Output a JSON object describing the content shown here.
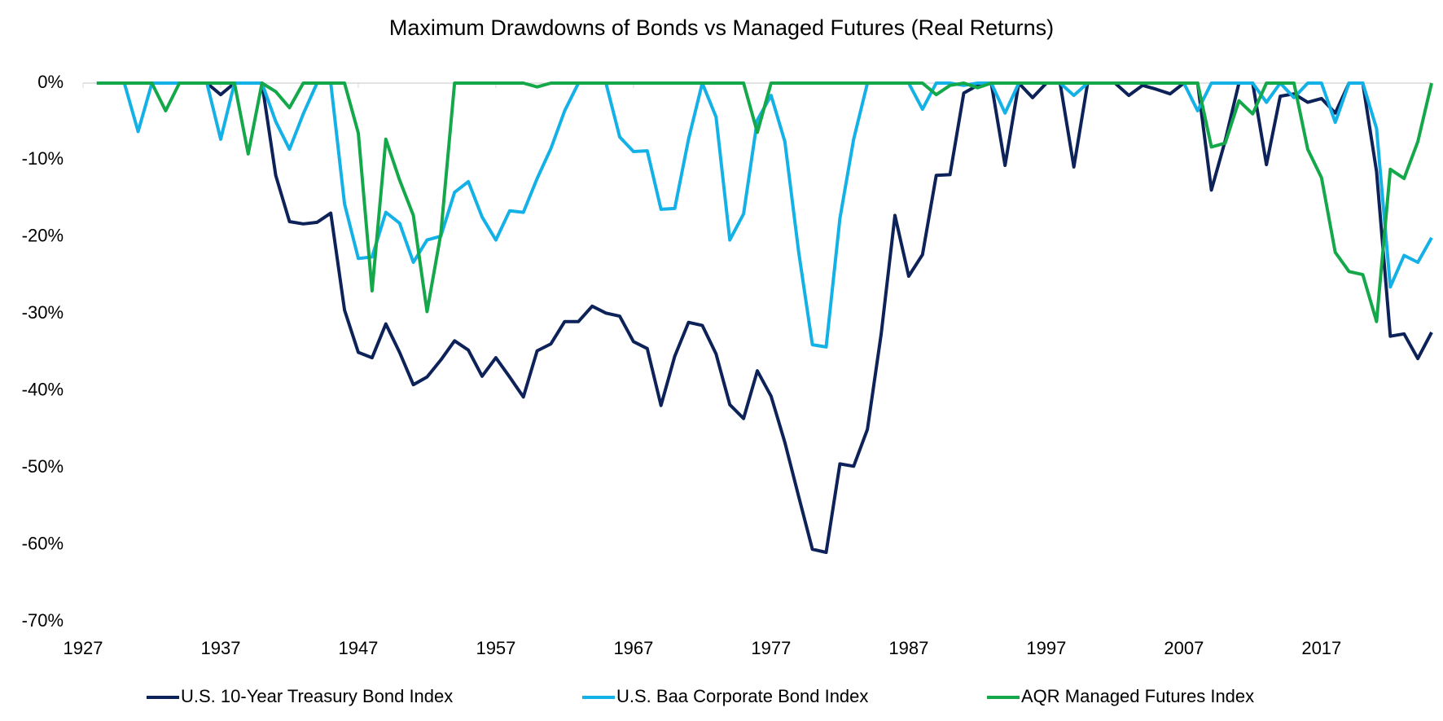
{
  "chart_data": {
    "type": "line",
    "title": "Maximum Drawdowns of Bonds vs Managed Futures (Real Returns)",
    "x": [
      1928,
      1929,
      1930,
      1931,
      1932,
      1933,
      1934,
      1935,
      1936,
      1937,
      1938,
      1939,
      1940,
      1941,
      1942,
      1943,
      1944,
      1945,
      1946,
      1947,
      1948,
      1949,
      1950,
      1951,
      1952,
      1953,
      1954,
      1955,
      1956,
      1957,
      1958,
      1959,
      1960,
      1961,
      1962,
      1963,
      1964,
      1965,
      1966,
      1967,
      1968,
      1969,
      1970,
      1971,
      1972,
      1973,
      1974,
      1975,
      1976,
      1977,
      1978,
      1979,
      1980,
      1981,
      1982,
      1983,
      1984,
      1985,
      1986,
      1987,
      1988,
      1989,
      1990,
      1991,
      1992,
      1993,
      1994,
      1995,
      1996,
      1997,
      1998,
      1999,
      2000,
      2001,
      2002,
      2003,
      2004,
      2005,
      2006,
      2007,
      2008,
      2009,
      2010,
      2011,
      2012,
      2013,
      2014,
      2015,
      2016,
      2017,
      2018,
      2019,
      2020,
      2021,
      2022,
      2023,
      2024,
      2025
    ],
    "series": [
      {
        "name": "U.S. 10-Year Treasury Bond Index",
        "color": "#0d2258",
        "values": [
          0,
          0,
          0,
          0,
          0,
          0,
          0,
          0,
          0,
          -1.5,
          0,
          0,
          0,
          -12,
          -18,
          -18.3,
          -18.1,
          -16.9,
          -29.5,
          -35,
          -35.7,
          -31.3,
          -35,
          -39.2,
          -38.2,
          -36,
          -33.5,
          -34.7,
          -38.1,
          -35.7,
          -38.2,
          -40.8,
          -34.8,
          -33.9,
          -31,
          -31,
          -29,
          -29.9,
          -30.3,
          -33.6,
          -34.5,
          -41.9,
          -35.5,
          -31.1,
          -31.5,
          -35.2,
          -41.8,
          -43.6,
          -37.4,
          -40.7,
          -46.7,
          -53.7,
          -60.6,
          -61,
          -49.5,
          -49.8,
          -45,
          -32.6,
          -17.2,
          -25.1,
          -22.3,
          -12,
          -11.9,
          -1.3,
          -0.3,
          0,
          -10.7,
          0,
          -1.9,
          0,
          0,
          -10.9,
          0,
          0,
          0,
          -1.6,
          -0.3,
          -0.8,
          -1.4,
          0,
          0,
          -13.9,
          -7.5,
          0,
          0,
          -10.6,
          -1.7,
          -1.4,
          -2.5,
          -2,
          -3.9,
          0,
          0,
          -11.5,
          -32.9,
          -32.6,
          -35.8,
          -32.4
        ]
      },
      {
        "name": "U.S. Baa Corporate Bond Index",
        "color": "#14b1e7",
        "values": [
          0,
          0,
          0,
          -6.3,
          0,
          0,
          0,
          0,
          0,
          -7.3,
          0,
          0,
          0,
          -5,
          -8.6,
          -4,
          0,
          0,
          -15.7,
          -22.8,
          -22.6,
          -16.8,
          -18.2,
          -23.3,
          -20.4,
          -19.9,
          -14.2,
          -12.8,
          -17.4,
          -20.4,
          -16.6,
          -16.8,
          -12.4,
          -8.5,
          -3.6,
          0,
          0,
          0,
          -7,
          -8.9,
          -8.8,
          -16.4,
          -16.3,
          -7.3,
          0,
          -4.4,
          -20.4,
          -17,
          -4.8,
          -1.6,
          -7.6,
          -21.9,
          -34,
          -34.3,
          -17.6,
          -7.3,
          0,
          0,
          0,
          0,
          -3.4,
          0,
          0,
          -0.3,
          0,
          0,
          -3.9,
          0,
          0,
          0,
          0,
          -1.6,
          0,
          0,
          0,
          0,
          0,
          0,
          0,
          0,
          -3.6,
          0,
          0,
          0,
          0,
          -2.5,
          0,
          -1.9,
          0,
          0,
          -5.1,
          0,
          0,
          -5.9,
          -26.5,
          -22.4,
          -23.3,
          -20.1
        ]
      },
      {
        "name": "AQR Managed Futures Index",
        "color": "#14a84a",
        "values": [
          0,
          0,
          0,
          0,
          0,
          -3.6,
          0,
          0,
          0,
          0,
          0,
          -9.2,
          0,
          -1.1,
          -3.2,
          0,
          0,
          0,
          0,
          -6.5,
          -27,
          -7.3,
          -12.6,
          -17.2,
          -29.7,
          -19.6,
          0,
          0,
          0,
          0,
          0,
          0,
          -0.5,
          0,
          0,
          0,
          0,
          0,
          0,
          0,
          0,
          0,
          0,
          0,
          0,
          0,
          0,
          0,
          -6.4,
          0,
          0,
          0,
          0,
          0,
          0,
          0,
          0,
          0,
          0,
          0,
          0,
          -1.5,
          -0.3,
          0,
          -0.6,
          0,
          0,
          0,
          0,
          0,
          0,
          0,
          0,
          0,
          0,
          0,
          0,
          0,
          0,
          0,
          0,
          -8.3,
          -7.8,
          -2.3,
          -4,
          0,
          0,
          0,
          -8.6,
          -12.3,
          -22,
          -24.5,
          -24.9,
          -31,
          -11.2,
          -12.4,
          -7.6,
          0
        ]
      }
    ],
    "xlim": [
      1927,
      2025
    ],
    "xticks": [
      1927,
      1937,
      1947,
      1957,
      1967,
      1977,
      1987,
      1997,
      2007,
      2017
    ],
    "ylim": [
      -70,
      0
    ],
    "yticks": [
      {
        "value": 0,
        "label": "0%"
      },
      {
        "value": -10,
        "label": "-10%"
      },
      {
        "value": -20,
        "label": "-20%"
      },
      {
        "value": -30,
        "label": "-30%"
      },
      {
        "value": -40,
        "label": "-40%"
      },
      {
        "value": -50,
        "label": "-50%"
      },
      {
        "value": -60,
        "label": "-60%"
      },
      {
        "value": -70,
        "label": "-70%"
      }
    ],
    "grid": false,
    "legend": "bottom"
  }
}
